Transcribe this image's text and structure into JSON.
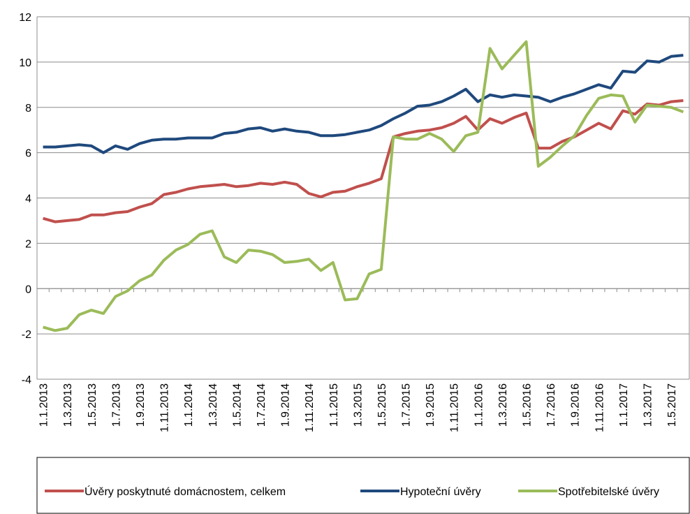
{
  "chart_data": {
    "type": "line",
    "categories": [
      "1.1.2013",
      null,
      "1.3.2013",
      null,
      "1.5.2013",
      null,
      "1.7.2013",
      null,
      "1.9.2013",
      null,
      "1.11.2013",
      null,
      "1.1.2014",
      null,
      "1.3.2014",
      null,
      "1.5.2014",
      null,
      "1.7.2014",
      null,
      "1.9.2014",
      null,
      "1.11.2014",
      null,
      "1.1.2015",
      null,
      "1.3.2015",
      null,
      "1.5.2015",
      null,
      "1.7.2015",
      null,
      "1.9.2015",
      null,
      "1.11.2015",
      null,
      "1.1.2016",
      null,
      "1.3.2016",
      null,
      "1.5.2016",
      null,
      "1.7.2016",
      null,
      "1.9.2016",
      null,
      "1.11.2016",
      null,
      "1.1.2017",
      null,
      "1.3.2017",
      null,
      "1.5.2017",
      null
    ],
    "series": [
      {
        "name": "Úvěry poskytnuté domácnostem, celkem",
        "color": "#c0504d",
        "values": [
          3.1,
          2.95,
          3.0,
          3.05,
          3.25,
          3.25,
          3.35,
          3.4,
          3.6,
          3.75,
          4.15,
          4.25,
          4.4,
          4.5,
          4.55,
          4.6,
          4.5,
          4.55,
          4.65,
          4.6,
          4.7,
          4.6,
          4.2,
          4.05,
          4.25,
          4.3,
          4.5,
          4.65,
          4.85,
          6.7,
          6.85,
          6.95,
          7.0,
          7.1,
          7.3,
          7.6,
          7.0,
          7.5,
          7.3,
          7.55,
          7.75,
          6.2,
          6.2,
          6.5,
          6.7,
          7.0,
          7.3,
          7.05,
          7.85,
          7.7,
          8.15,
          8.1,
          8.25,
          8.3
        ]
      },
      {
        "name": "Hypoteční úvěry",
        "color": "#1f497d",
        "values": [
          6.25,
          6.25,
          6.3,
          6.35,
          6.3,
          6.0,
          6.3,
          6.15,
          6.4,
          6.55,
          6.6,
          6.6,
          6.65,
          6.65,
          6.65,
          6.85,
          6.9,
          7.05,
          7.1,
          6.95,
          7.05,
          6.95,
          6.9,
          6.75,
          6.75,
          6.8,
          6.9,
          7.0,
          7.2,
          7.5,
          7.75,
          8.05,
          8.1,
          8.25,
          8.5,
          8.8,
          8.25,
          8.55,
          8.45,
          8.55,
          8.5,
          8.45,
          8.25,
          8.45,
          8.6,
          8.8,
          9.0,
          8.85,
          9.6,
          9.55,
          10.05,
          10.0,
          10.25,
          10.3
        ]
      },
      {
        "name": "Spotřebitelské úvěry",
        "color": "#9bbb59",
        "values": [
          -1.7,
          -1.85,
          -1.75,
          -1.15,
          -0.95,
          -1.1,
          -0.35,
          -0.1,
          0.35,
          0.6,
          1.25,
          1.7,
          1.95,
          2.4,
          2.55,
          1.4,
          1.15,
          1.7,
          1.65,
          1.5,
          1.15,
          1.2,
          1.3,
          0.8,
          1.15,
          -0.5,
          -0.45,
          0.65,
          0.85,
          6.7,
          6.6,
          6.6,
          6.85,
          6.6,
          6.05,
          6.75,
          6.9,
          10.6,
          9.7,
          10.3,
          10.9,
          5.4,
          5.8,
          6.3,
          6.75,
          7.65,
          8.4,
          8.55,
          8.5,
          7.35,
          8.1,
          8.05,
          8.0,
          7.8
        ]
      }
    ],
    "ylim": [
      -4,
      12
    ],
    "yticks": [
      -4,
      -2,
      0,
      2,
      4,
      6,
      8,
      10,
      12
    ],
    "grid": true
  }
}
